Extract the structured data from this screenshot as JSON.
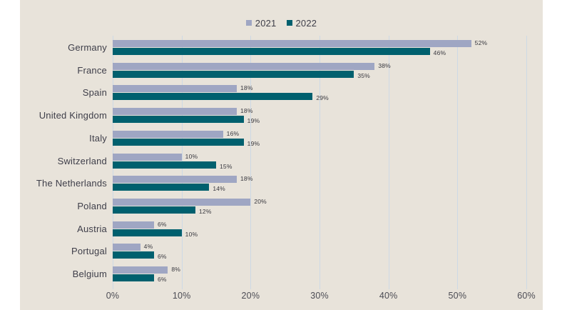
{
  "page": {
    "background": "#ffffff",
    "panel_background": "#e8e3da"
  },
  "legend": {
    "position": "top-center",
    "items": [
      {
        "label": "2021",
        "color": "#9fa6c3"
      },
      {
        "label": "2022",
        "color": "#00606e"
      }
    ]
  },
  "chart_data": {
    "type": "bar",
    "orientation": "horizontal",
    "title": "",
    "categories": [
      "Germany",
      "France",
      "Spain",
      "United Kingdom",
      "Italy",
      "Switzerland",
      "The Netherlands",
      "Poland",
      "Austria",
      "Portugal",
      "Belgium"
    ],
    "series": [
      {
        "name": "2021",
        "color": "#9fa6c3",
        "values": [
          52,
          38,
          18,
          18,
          16,
          10,
          18,
          20,
          6,
          4,
          8
        ]
      },
      {
        "name": "2022",
        "color": "#00606e",
        "values": [
          46,
          35,
          29,
          19,
          19,
          15,
          14,
          12,
          10,
          6,
          6
        ]
      }
    ],
    "value_suffix": "%",
    "data_labels": true,
    "x_ticks": [
      "0%",
      "10%",
      "20%",
      "30%",
      "40%",
      "50%",
      "60%"
    ],
    "x_tick_values": [
      0,
      10,
      20,
      30,
      40,
      50,
      60
    ],
    "xlim": [
      0,
      60
    ],
    "grid": "vertical",
    "gridline_color": "#cdd9e5",
    "text_color": "#3e3e49",
    "legend_position": "top-center"
  }
}
